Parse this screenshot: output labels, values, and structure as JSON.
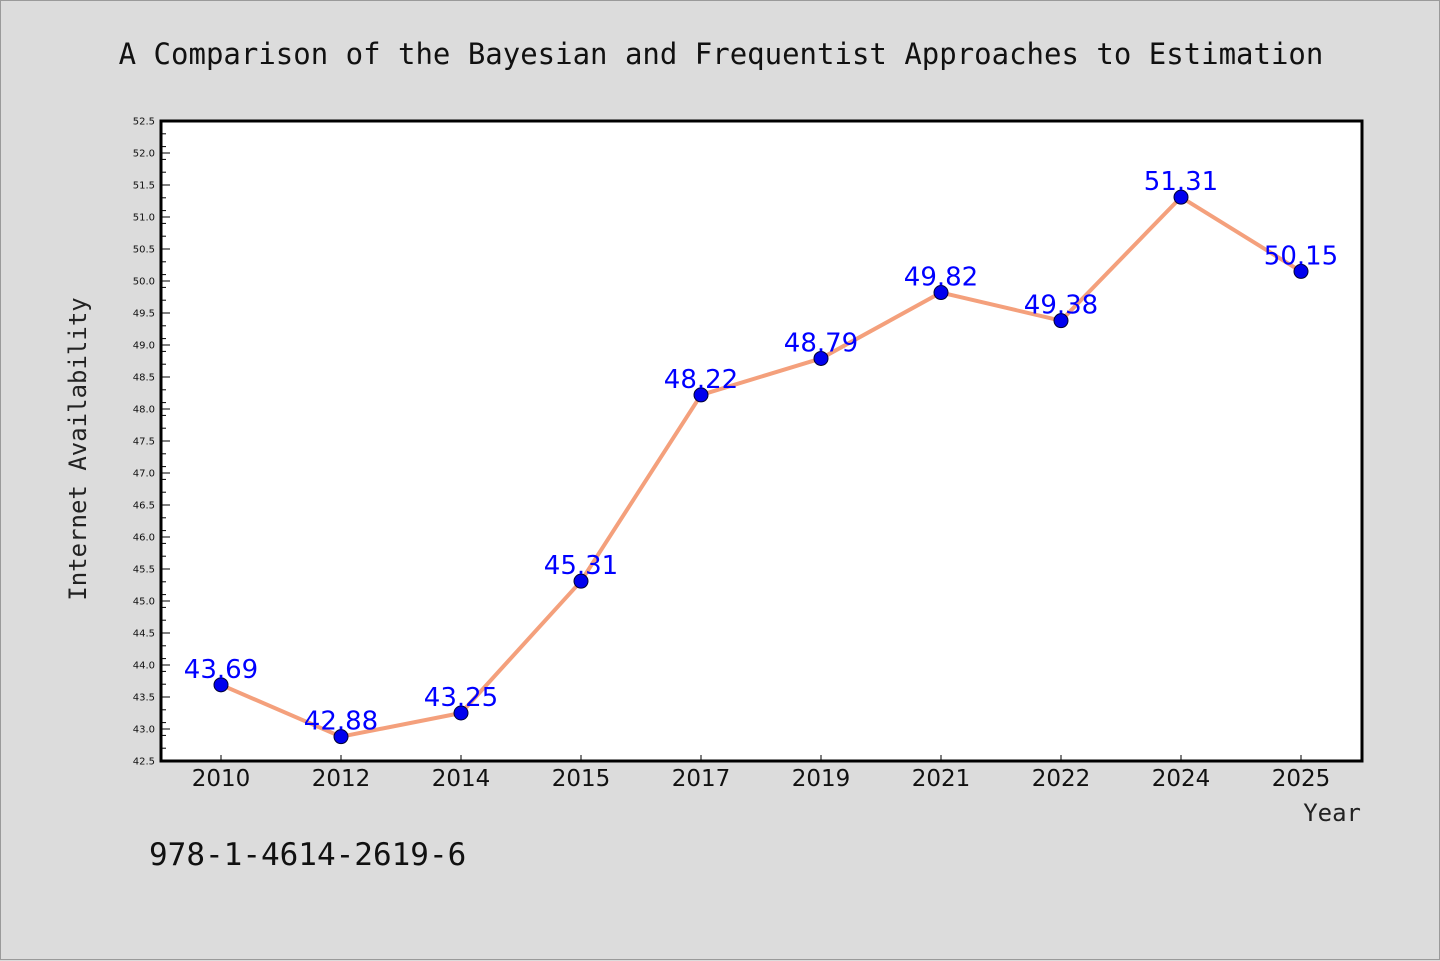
{
  "chart_data": {
    "type": "line",
    "title": "A Comparison of the Bayesian and Frequentist Approaches to Estimation",
    "xlabel": "Year",
    "ylabel": "Internet Availability",
    "categories": [
      "2010",
      "2012",
      "2014",
      "2015",
      "2017",
      "2019",
      "2021",
      "2022",
      "2024",
      "2025"
    ],
    "series": [
      {
        "values": [
          43.69,
          42.88,
          43.25,
          45.31,
          48.22,
          48.79,
          49.82,
          49.38,
          51.31,
          50.15
        ],
        "line_color": "#f4a07c",
        "marker_color": "#0000ee"
      }
    ],
    "data_labels": [
      "43.69",
      "42.88",
      "43.25",
      "45.31",
      "48.22",
      "48.79",
      "49.82",
      "49.38",
      "51.31",
      "50.15"
    ],
    "ylim": [
      42.5,
      52.5
    ],
    "yticks": [
      "42.5",
      "43.0",
      "43.5",
      "44.0",
      "44.5",
      "45.0",
      "45.5",
      "46.0",
      "46.5",
      "47.0",
      "47.5",
      "48.0",
      "48.5",
      "49.0",
      "49.5",
      "50.0",
      "50.5",
      "51.0",
      "51.5",
      "52.0",
      "52.5"
    ],
    "grid": false,
    "label_color": "#0000ff"
  },
  "footer": {
    "isbn": "978-1-4614-2619-6"
  }
}
